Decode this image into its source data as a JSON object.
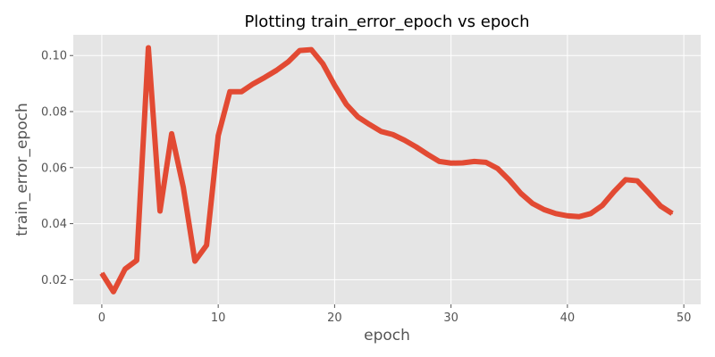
{
  "chart_data": {
    "type": "line",
    "title": "Plotting train_error_epoch vs epoch",
    "xlabel": "epoch",
    "ylabel": "train_error_epoch",
    "xlim": [
      -2.45,
      51.45
    ],
    "ylim": [
      0.0112,
      0.1074
    ],
    "xticks": [
      0,
      10,
      20,
      30,
      40,
      50
    ],
    "yticks": [
      0.02,
      0.04,
      0.06,
      0.08,
      0.1
    ],
    "xtick_labels": [
      "0",
      "10",
      "20",
      "30",
      "40",
      "50"
    ],
    "ytick_labels": [
      "0.02",
      "0.04",
      "0.06",
      "0.08",
      "0.10"
    ],
    "grid": true,
    "legend": "none",
    "colors": {
      "line": "#E24A33",
      "plot_background": "#E5E5E5",
      "grid": "#FFFFFF",
      "tick_text": "#555555",
      "title_text": "#000000"
    },
    "series": [
      {
        "x": [
          0,
          1,
          2,
          3,
          4,
          5,
          6,
          7,
          8,
          9,
          10,
          11,
          12,
          13,
          14,
          15,
          16,
          17,
          18,
          19,
          20,
          21,
          22,
          23,
          24,
          25,
          26,
          27,
          28,
          29,
          30,
          31,
          32,
          33,
          34,
          35,
          36,
          37,
          38,
          39,
          40,
          41,
          42,
          43,
          44,
          45,
          46,
          47,
          48,
          49
        ],
        "values": [
          0.0223,
          0.0157,
          0.0238,
          0.0269,
          0.1028,
          0.0445,
          0.0721,
          0.053,
          0.0266,
          0.0323,
          0.0714,
          0.0871,
          0.0871,
          0.0899,
          0.0922,
          0.0947,
          0.0977,
          0.1018,
          0.1021,
          0.097,
          0.0894,
          0.0826,
          0.0781,
          0.0754,
          0.0729,
          0.0718,
          0.0698,
          0.0674,
          0.0647,
          0.0622,
          0.0616,
          0.0617,
          0.0622,
          0.0619,
          0.0597,
          0.0556,
          0.0508,
          0.0472,
          0.045,
          0.0436,
          0.0428,
          0.0425,
          0.0436,
          0.0465,
          0.0514,
          0.0557,
          0.0553,
          0.0509,
          0.0463,
          0.0436
        ]
      }
    ]
  }
}
